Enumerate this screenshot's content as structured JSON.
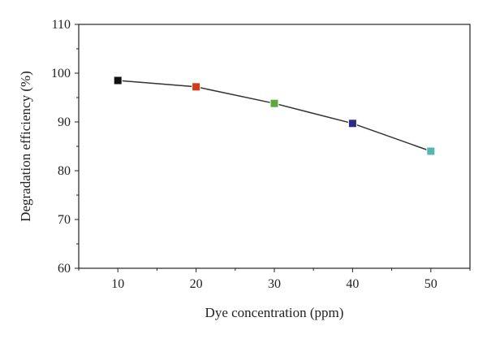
{
  "chart_data": {
    "type": "line",
    "title": "",
    "xlabel": "Dye concentration (ppm)",
    "ylabel": "Degradation efficiency (%)",
    "xlim": [
      5,
      55
    ],
    "ylim": [
      60,
      110
    ],
    "xticks": [
      10,
      20,
      30,
      40,
      50
    ],
    "yticks": [
      60,
      70,
      80,
      90,
      100,
      110
    ],
    "grid": false,
    "x": [
      10,
      20,
      30,
      40,
      50
    ],
    "values": [
      98.5,
      97.2,
      93.8,
      89.7,
      84.0
    ],
    "marker_colors": [
      "#111111",
      "#d23a1a",
      "#5fa83e",
      "#2d2a86",
      "#56b5b3"
    ],
    "line_color": "#333333"
  }
}
